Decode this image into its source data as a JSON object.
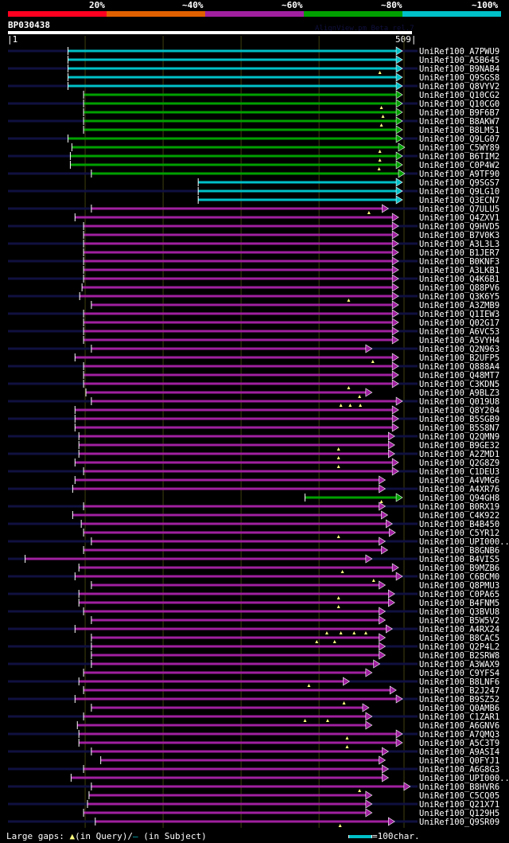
{
  "legend": {
    "labels": [
      "20%",
      "~40%",
      "~60%",
      "~80%",
      "~100%"
    ],
    "colors": [
      "#ff0020",
      "#e06000",
      "#a020a0",
      "#00a000",
      "#00c0c8"
    ]
  },
  "query": {
    "name": "BP030438",
    "start": "1",
    "end": "509",
    "length": 509
  },
  "credit": "AlignView.pm Beta rel.7",
  "colors": {
    "cyan": "#00c0c8",
    "green": "#00a000",
    "purple": "#a020a0",
    "navy": "#101040",
    "grid": "#404010",
    "gap": "#ffff80"
  },
  "hits": [
    {
      "label": "UniRef100_A7PWU9",
      "start": 78,
      "end": 505,
      "c": "cyan"
    },
    {
      "label": "UniRef100_A5B645",
      "start": 78,
      "end": 505,
      "c": "cyan"
    },
    {
      "label": "UniRef100_B9NAB4",
      "start": 78,
      "end": 505,
      "c": "cyan",
      "gaps": [
        478
      ]
    },
    {
      "label": "UniRef100_Q9SGS8",
      "start": 78,
      "end": 505,
      "c": "cyan"
    },
    {
      "label": "UniRef100_Q8VYV2",
      "start": 78,
      "end": 505,
      "c": "cyan"
    },
    {
      "label": "UniRef100_Q10CG2",
      "start": 98,
      "end": 505,
      "c": "green"
    },
    {
      "label": "UniRef100_Q10CG0",
      "start": 98,
      "end": 505,
      "c": "green",
      "gaps": [
        480
      ]
    },
    {
      "label": "UniRef100_B9F6B7",
      "start": 98,
      "end": 505,
      "c": "green",
      "gaps": [
        482
      ]
    },
    {
      "label": "UniRef100_B8AKW7",
      "start": 98,
      "end": 505,
      "c": "green",
      "gaps": [
        480
      ]
    },
    {
      "label": "UniRef100_B8LM51",
      "start": 98,
      "end": 505,
      "c": "green"
    },
    {
      "label": "UniRef100_Q9LG07",
      "start": 78,
      "end": 505,
      "c": "green"
    },
    {
      "label": "UniRef100_C5WY89",
      "start": 83,
      "end": 508,
      "c": "green",
      "gaps": [
        478
      ]
    },
    {
      "label": "UniRef100_B6TIM2",
      "start": 81,
      "end": 505,
      "c": "green",
      "gaps": [
        478
      ]
    },
    {
      "label": "UniRef100_C0P4W2",
      "start": 81,
      "end": 505,
      "c": "green",
      "gaps": [
        477
      ]
    },
    {
      "label": "UniRef100_A9TF90",
      "start": 108,
      "end": 508,
      "c": "green"
    },
    {
      "label": "UniRef100_Q9SGS7",
      "start": 245,
      "end": 505,
      "c": "cyan"
    },
    {
      "label": "UniRef100_Q9LG10",
      "start": 245,
      "end": 505,
      "c": "cyan"
    },
    {
      "label": "UniRef100_Q3ECN7",
      "start": 245,
      "end": 505,
      "c": "cyan"
    },
    {
      "label": "UniRef100_Q7ULU5",
      "start": 108,
      "end": 487,
      "c": "purple",
      "gaps": [
        464
      ]
    },
    {
      "label": "UniRef100_Q4ZXV1",
      "start": 87,
      "end": 500,
      "c": "purple"
    },
    {
      "label": "UniRef100_Q9HVD5",
      "start": 98,
      "end": 500,
      "c": "purple"
    },
    {
      "label": "UniRef100_B7V0K3",
      "start": 98,
      "end": 500,
      "c": "purple"
    },
    {
      "label": "UniRef100_A3L3L3",
      "start": 98,
      "end": 500,
      "c": "purple"
    },
    {
      "label": "UniRef100_B1JER7",
      "start": 98,
      "end": 500,
      "c": "purple"
    },
    {
      "label": "UniRef100_B0KNF3",
      "start": 98,
      "end": 500,
      "c": "purple"
    },
    {
      "label": "UniRef100_A3LKB1",
      "start": 98,
      "end": 500,
      "c": "purple"
    },
    {
      "label": "UniRef100_Q4K6B1",
      "start": 98,
      "end": 500,
      "c": "purple"
    },
    {
      "label": "UniRef100_Q88PV6",
      "start": 96,
      "end": 500,
      "c": "purple"
    },
    {
      "label": "UniRef100_Q3K6Y5",
      "start": 93,
      "end": 500,
      "c": "purple",
      "gaps": [
        438
      ]
    },
    {
      "label": "UniRef100_A3ZMB9",
      "start": 108,
      "end": 500,
      "c": "purple"
    },
    {
      "label": "UniRef100_Q1IEW3",
      "start": 98,
      "end": 500,
      "c": "purple"
    },
    {
      "label": "UniRef100_Q02G17",
      "start": 98,
      "end": 500,
      "c": "purple"
    },
    {
      "label": "UniRef100_A6VC53",
      "start": 98,
      "end": 500,
      "c": "purple"
    },
    {
      "label": "UniRef100_A5VYH4",
      "start": 98,
      "end": 500,
      "c": "purple"
    },
    {
      "label": "UniRef100_Q2N963",
      "start": 108,
      "end": 466,
      "c": "purple"
    },
    {
      "label": "UniRef100_B2UFP5",
      "start": 87,
      "end": 500,
      "c": "purple",
      "gaps": [
        469
      ]
    },
    {
      "label": "UniRef100_Q888A4",
      "start": 98,
      "end": 500,
      "c": "purple"
    },
    {
      "label": "UniRef100_Q48MT7",
      "start": 98,
      "end": 500,
      "c": "purple"
    },
    {
      "label": "UniRef100_C3KDN5",
      "start": 98,
      "end": 500,
      "c": "purple",
      "gaps": [
        438
      ]
    },
    {
      "label": "UniRef100_A9BLZ3",
      "start": 101,
      "end": 466,
      "c": "purple",
      "gaps": [
        452
      ]
    },
    {
      "label": "UniRef100_Q019U8",
      "start": 108,
      "end": 505,
      "c": "purple",
      "gaps": [
        428,
        440,
        453
      ]
    },
    {
      "label": "UniRef100_Q8Y204",
      "start": 87,
      "end": 500,
      "c": "purple"
    },
    {
      "label": "UniRef100_B5SGB9",
      "start": 87,
      "end": 500,
      "c": "purple"
    },
    {
      "label": "UniRef100_B5S8N7",
      "start": 87,
      "end": 500,
      "c": "purple"
    },
    {
      "label": "UniRef100_Q2QMN9",
      "start": 92,
      "end": 495,
      "c": "purple"
    },
    {
      "label": "UniRef100_B9GE32",
      "start": 92,
      "end": 495,
      "c": "purple",
      "gaps": [
        425
      ]
    },
    {
      "label": "UniRef100_A2ZMD1",
      "start": 92,
      "end": 495,
      "c": "purple",
      "gaps": [
        425
      ]
    },
    {
      "label": "UniRef100_Q2G8Z9",
      "start": 87,
      "end": 500,
      "c": "purple",
      "gaps": [
        425
      ]
    },
    {
      "label": "UniRef100_C1DEU3",
      "start": 98,
      "end": 500,
      "c": "purple"
    },
    {
      "label": "UniRef100_A4VMG6",
      "start": 87,
      "end": 483,
      "c": "purple"
    },
    {
      "label": "UniRef100_A4XR76",
      "start": 84,
      "end": 483,
      "c": "purple"
    },
    {
      "label": "UniRef100_Q94GH8",
      "start": 382,
      "end": 505,
      "c": "green",
      "gaps": [
        480
      ]
    },
    {
      "label": "UniRef100_B0RX19",
      "start": 98,
      "end": 483,
      "c": "purple"
    },
    {
      "label": "UniRef100_C4K922",
      "start": 84,
      "end": 486,
      "c": "purple"
    },
    {
      "label": "UniRef100_B4B450",
      "start": 95,
      "end": 492,
      "c": "purple"
    },
    {
      "label": "UniRef100_C5YR12",
      "start": 98,
      "end": 496,
      "c": "purple",
      "gaps": [
        425
      ]
    },
    {
      "label": "UniRef100_UPI000..",
      "start": 108,
      "end": 483,
      "c": "purple"
    },
    {
      "label": "UniRef100_B8GNB6",
      "start": 98,
      "end": 486,
      "c": "purple"
    },
    {
      "label": "UniRef100_B4VIS5",
      "start": 23,
      "end": 466,
      "c": "purple"
    },
    {
      "label": "UniRef100_B9MZB6",
      "start": 92,
      "end": 500,
      "c": "purple",
      "gaps": [
        430
      ]
    },
    {
      "label": "UniRef100_C6BCM0",
      "start": 87,
      "end": 505,
      "c": "purple",
      "gaps": [
        470
      ]
    },
    {
      "label": "UniRef100_Q8PMU3",
      "start": 108,
      "end": 483,
      "c": "purple"
    },
    {
      "label": "UniRef100_C0PA65",
      "start": 92,
      "end": 495,
      "c": "purple",
      "gaps": [
        425
      ]
    },
    {
      "label": "UniRef100_B4FNM5",
      "start": 92,
      "end": 495,
      "c": "purple",
      "gaps": [
        425
      ]
    },
    {
      "label": "UniRef100_Q3BVU8",
      "start": 98,
      "end": 483,
      "c": "purple"
    },
    {
      "label": "UniRef100_B5W5V2",
      "start": 108,
      "end": 483,
      "c": "purple"
    },
    {
      "label": "UniRef100_A4RX24",
      "start": 87,
      "end": 492,
      "c": "purple",
      "gaps": [
        410,
        428,
        445,
        460
      ]
    },
    {
      "label": "UniRef100_B8CAC5",
      "start": 108,
      "end": 483,
      "c": "purple",
      "gaps": [
        397,
        420
      ]
    },
    {
      "label": "UniRef100_Q2P4L2",
      "start": 108,
      "end": 483,
      "c": "purple"
    },
    {
      "label": "UniRef100_B2SRW8",
      "start": 108,
      "end": 483,
      "c": "purple"
    },
    {
      "label": "UniRef100_A3WAX9",
      "start": 108,
      "end": 476,
      "c": "purple"
    },
    {
      "label": "UniRef100_C9YFS4",
      "start": 98,
      "end": 466,
      "c": "purple"
    },
    {
      "label": "UniRef100_B8LNF6",
      "start": 92,
      "end": 437,
      "c": "purple",
      "gaps": [
        387
      ]
    },
    {
      "label": "UniRef100_B2J247",
      "start": 98,
      "end": 497,
      "c": "purple"
    },
    {
      "label": "UniRef100_B9SZ52",
      "start": 87,
      "end": 505,
      "c": "purple",
      "gaps": [
        432
      ]
    },
    {
      "label": "UniRef100_Q0AMB6",
      "start": 108,
      "end": 462,
      "c": "purple"
    },
    {
      "label": "UniRef100_C1ZAR1",
      "start": 98,
      "end": 466,
      "c": "purple",
      "gaps": [
        382,
        411
      ]
    },
    {
      "label": "UniRef100_A6GNV6",
      "start": 90,
      "end": 466,
      "c": "purple"
    },
    {
      "label": "UniRef100_A7QMQ3",
      "start": 92,
      "end": 505,
      "c": "purple",
      "gaps": [
        436
      ]
    },
    {
      "label": "UniRef100_A5C3T9",
      "start": 92,
      "end": 505,
      "c": "purple",
      "gaps": [
        436
      ]
    },
    {
      "label": "UniRef100_A9ASI4",
      "start": 108,
      "end": 487,
      "c": "purple"
    },
    {
      "label": "UniRef100_Q0FYJ1",
      "start": 120,
      "end": 483,
      "c": "purple"
    },
    {
      "label": "UniRef100_A6G8G3",
      "start": 98,
      "end": 487,
      "c": "purple"
    },
    {
      "label": "UniRef100_UPI000..",
      "start": 82,
      "end": 487,
      "c": "purple"
    },
    {
      "label": "UniRef100_B8HVR6",
      "start": 108,
      "end": 515,
      "c": "purple",
      "gaps": [
        452
      ]
    },
    {
      "label": "UniRef100_C5CQ05",
      "start": 105,
      "end": 466,
      "c": "purple"
    },
    {
      "label": "UniRef100_Q21X71",
      "start": 103,
      "end": 466,
      "c": "purple"
    },
    {
      "label": "UniRef100_Q129H5",
      "start": 98,
      "end": 466,
      "c": "purple"
    },
    {
      "label": "UniRef100_Q9SR09",
      "start": 113,
      "end": 495,
      "c": "purple",
      "gaps": [
        427
      ]
    }
  ],
  "footer": {
    "prefix": "Large gaps:",
    "query_marker": "▲",
    "query_text": "(in Query)/",
    "subject_marker": "–",
    "subject_text": " (in Subject)",
    "scale_text": "=100char."
  }
}
